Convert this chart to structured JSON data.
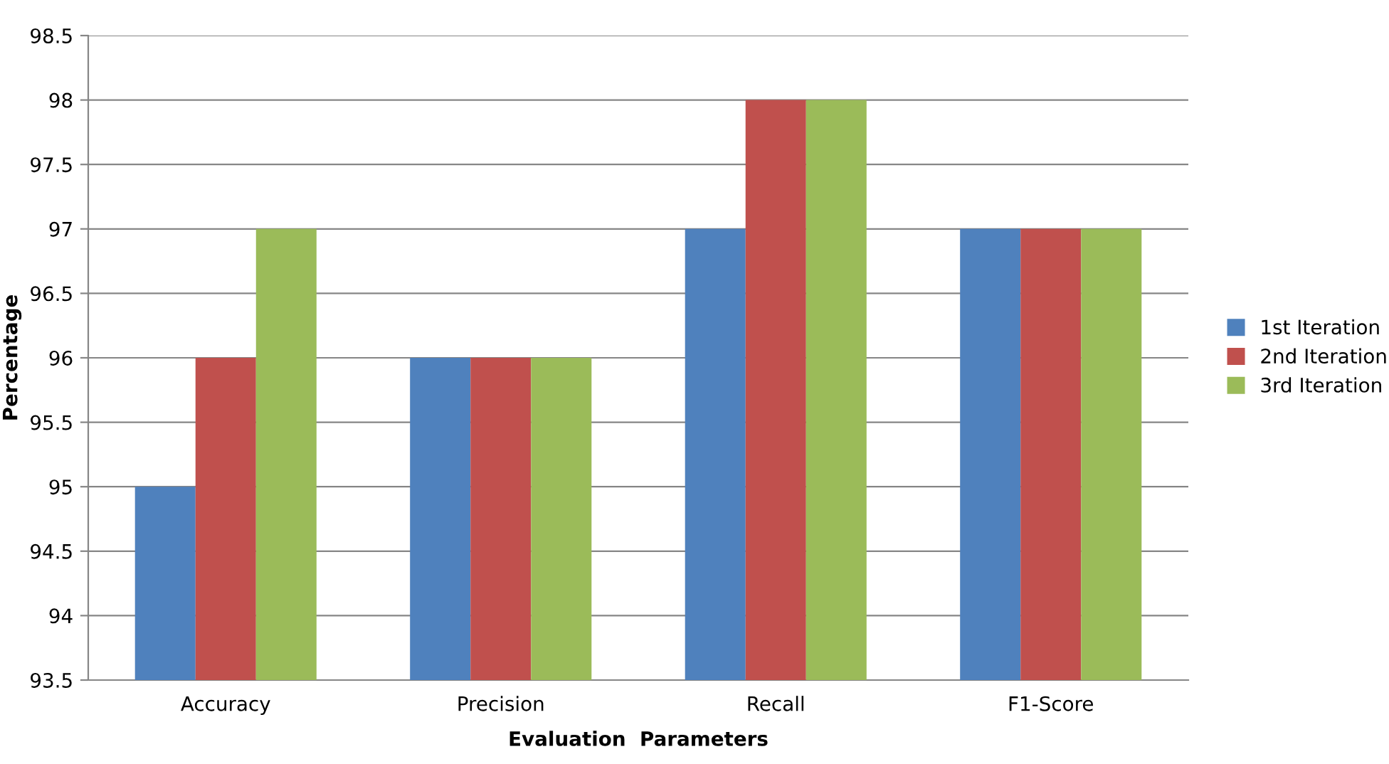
{
  "chart_data": {
    "type": "bar",
    "xlabel": "Evaluation  Parameters",
    "ylabel": "Percentage",
    "categories": [
      "Accuracy",
      "Precision",
      "Recall",
      "F1-Score"
    ],
    "series": [
      {
        "name": "1st Iteration",
        "color": "#4f81bd",
        "values": [
          95,
          96,
          97,
          97
        ]
      },
      {
        "name": "2nd Iteration",
        "color": "#c0504d",
        "values": [
          96,
          96,
          98,
          97
        ]
      },
      {
        "name": "3rd Iteration",
        "color": "#9bbb59",
        "values": [
          97,
          96,
          98,
          97
        ]
      }
    ],
    "ylim": [
      93.5,
      98.5
    ],
    "yticks": [
      93.5,
      94,
      94.5,
      95,
      95.5,
      96,
      96.5,
      97,
      97.5,
      98,
      98.5
    ],
    "grid": "y",
    "legend": "right"
  }
}
